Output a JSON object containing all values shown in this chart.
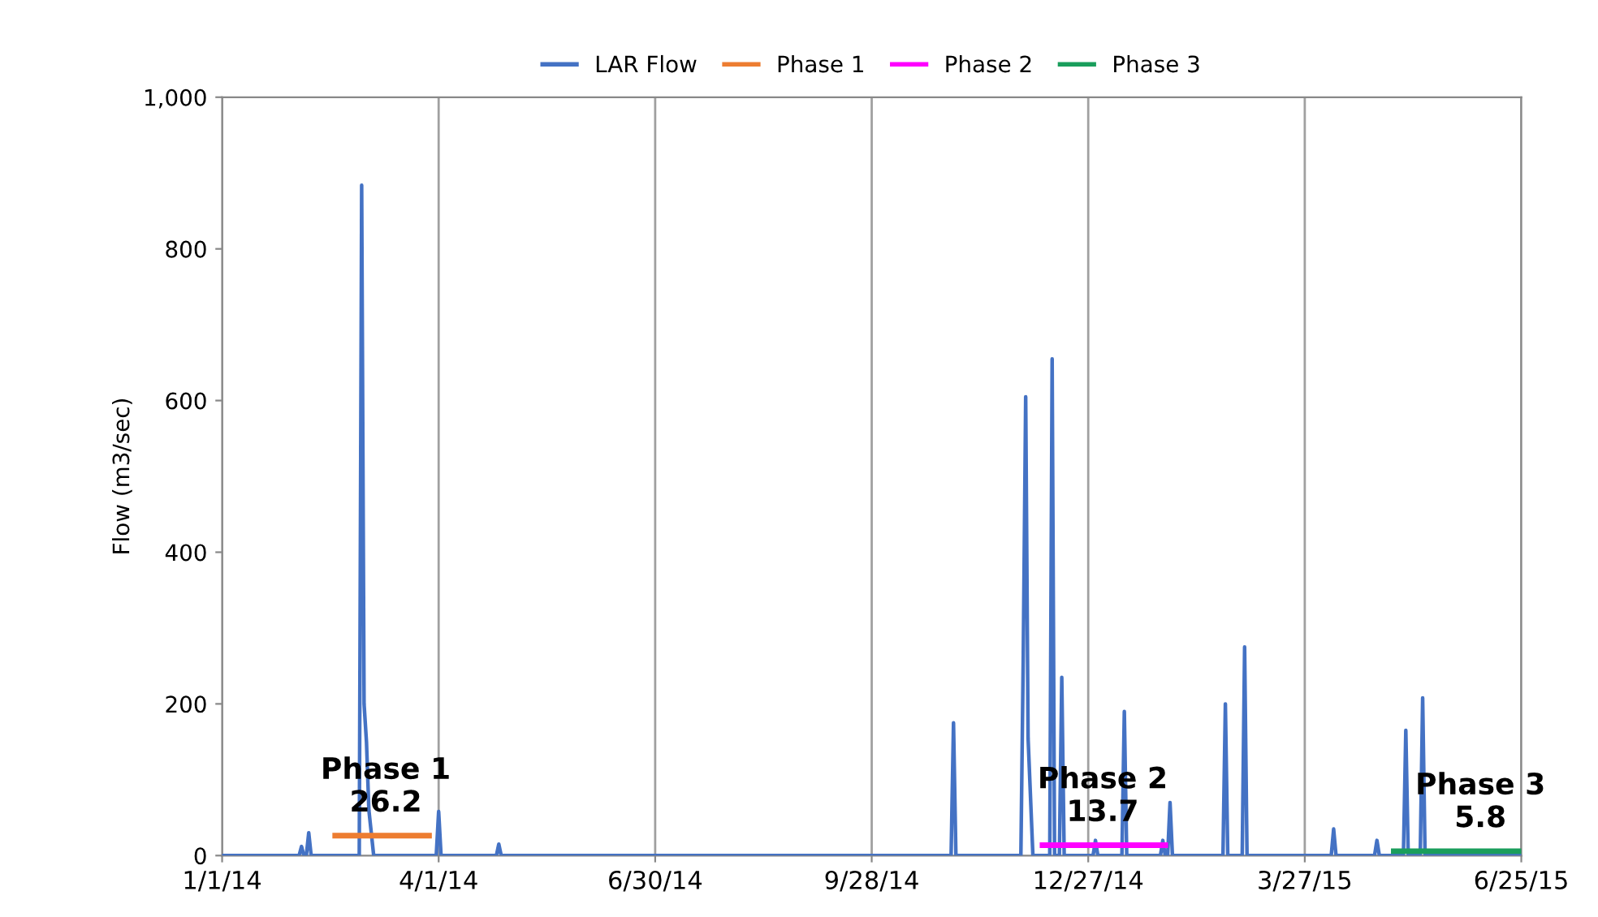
{
  "chart_data": {
    "type": "line",
    "ylabel": "Flow (m3/sec)",
    "series": [
      {
        "name": "LAR Flow",
        "color": "#4472c4",
        "x": [
          "2014-01-01",
          "2014-02-02",
          "2014-02-03",
          "2014-02-04",
          "2014-02-05",
          "2014-02-06",
          "2014-02-07",
          "2014-02-27",
          "2014-02-28",
          "2014-03-01",
          "2014-03-02",
          "2014-03-03",
          "2014-03-05",
          "2014-03-31",
          "2014-04-01",
          "2014-04-02",
          "2014-04-25",
          "2014-04-26",
          "2014-04-27",
          "2014-10-31",
          "2014-11-01",
          "2014-11-02",
          "2014-11-29",
          "2014-11-30",
          "2014-12-01",
          "2014-12-02",
          "2014-12-04",
          "2014-12-11",
          "2014-12-12",
          "2014-12-13",
          "2014-12-15",
          "2014-12-16",
          "2014-12-17",
          "2014-12-29",
          "2014-12-30",
          "2014-12-31",
          "2015-01-10",
          "2015-01-11",
          "2015-01-12",
          "2015-01-26",
          "2015-01-27",
          "2015-01-28",
          "2015-01-29",
          "2015-01-30",
          "2015-01-31",
          "2015-02-21",
          "2015-02-22",
          "2015-02-23",
          "2015-03-01",
          "2015-03-02",
          "2015-03-03",
          "2015-04-07",
          "2015-04-08",
          "2015-04-09",
          "2015-04-25",
          "2015-04-26",
          "2015-04-27",
          "2015-05-07",
          "2015-05-08",
          "2015-05-09",
          "2015-05-14",
          "2015-05-15",
          "2015-05-16",
          "2015-06-25"
        ],
        "values": [
          0,
          0,
          12,
          0,
          0,
          30,
          0,
          0,
          884,
          200,
          150,
          60,
          0,
          0,
          58,
          0,
          0,
          15,
          0,
          0,
          175,
          0,
          0,
          265,
          605,
          155,
          0,
          0,
          655,
          0,
          0,
          235,
          0,
          0,
          20,
          0,
          0,
          190,
          0,
          0,
          20,
          0,
          0,
          70,
          0,
          0,
          200,
          0,
          0,
          275,
          0,
          0,
          35,
          0,
          0,
          20,
          0,
          0,
          165,
          0,
          0,
          208,
          0,
          0
        ]
      },
      {
        "name": "Phase 1",
        "color": "#ed7d31",
        "x": [
          "2014-02-17",
          "2014-03-28"
        ],
        "values": [
          26.2,
          26.2
        ]
      },
      {
        "name": "Phase 2",
        "color": "#ff00ff",
        "x": [
          "2014-12-08",
          "2015-01-28"
        ],
        "values": [
          13.7,
          13.7
        ]
      },
      {
        "name": "Phase 3",
        "color": "#1a9e5c",
        "x": [
          "2015-05-03",
          "2015-06-25"
        ],
        "values": [
          5.8,
          5.8
        ]
      }
    ],
    "annotations": [
      {
        "text": "Phase 1\n26.2",
        "x": "2014-03-10",
        "y": 26.2
      },
      {
        "text": "Phase 2\n13.7",
        "x": "2015-01-02",
        "y": 13.7
      },
      {
        "text": "Phase 3\n5.8",
        "x": "2015-06-08",
        "y": 5.8
      }
    ],
    "xlim": [
      "2014-01-01",
      "2015-06-25"
    ],
    "xticks": [
      {
        "value": "2014-01-01",
        "label": "1/1/14"
      },
      {
        "value": "2014-04-01",
        "label": "4/1/14"
      },
      {
        "value": "2014-06-30",
        "label": "6/30/14"
      },
      {
        "value": "2014-09-28",
        "label": "9/28/14"
      },
      {
        "value": "2014-12-27",
        "label": "12/27/14"
      },
      {
        "value": "2015-03-27",
        "label": "3/27/15"
      },
      {
        "value": "2015-06-25",
        "label": "6/25/15"
      }
    ],
    "ylim": [
      0,
      1000
    ],
    "yticks": [
      0,
      200,
      400,
      600,
      800,
      {
        "value": 1000,
        "label": "1,000"
      }
    ],
    "grid": "x",
    "legend": "top",
    "line_style": "solid",
    "marker": "none"
  }
}
